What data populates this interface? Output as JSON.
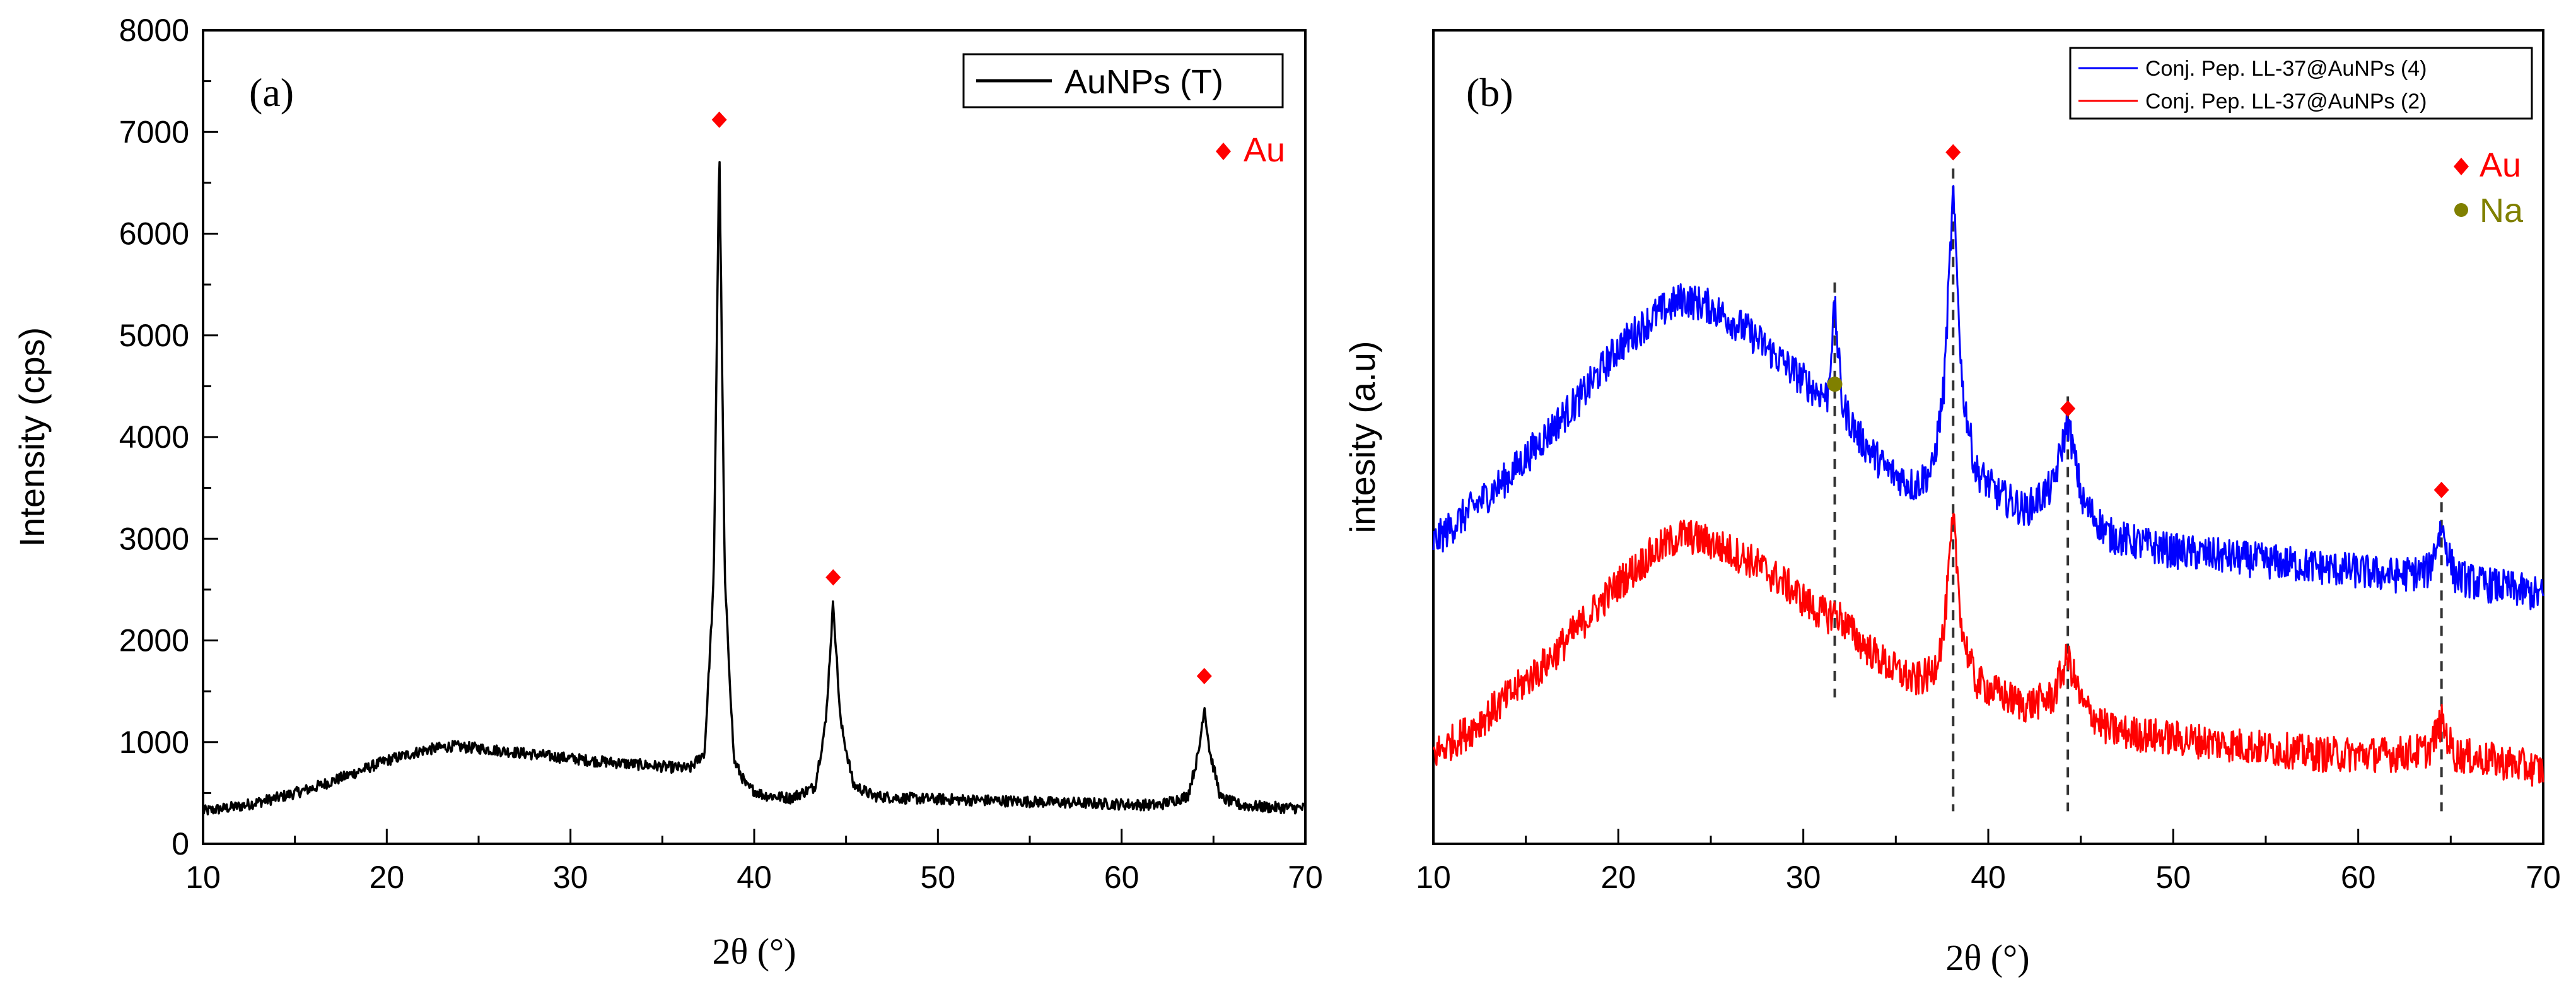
{
  "chart_data": [
    {
      "type": "line",
      "panel_label": "(a)",
      "xlabel": "2θ (°)",
      "ylabel": "Intensity (cps)",
      "xlim": [
        10,
        70
      ],
      "ylim": [
        0,
        8000
      ],
      "x_ticks": [
        10,
        20,
        30,
        40,
        50,
        60,
        70
      ],
      "y_ticks": [
        0,
        1000,
        2000,
        3000,
        4000,
        5000,
        6000,
        7000,
        8000
      ],
      "legend": "top-right",
      "series": [
        {
          "name": "AuNPs (T)",
          "color": "#000000",
          "x": [
            10,
            12,
            14,
            16,
            18,
            20,
            22,
            23.5,
            25,
            27,
            29,
            31,
            33,
            35,
            36.5,
            37.3,
            37.8,
            38.1,
            38.4,
            38.9,
            39.6,
            40.5,
            42,
            43.3,
            43.9,
            44.3,
            44.7,
            45.4,
            46.5,
            48,
            50,
            52,
            54,
            56,
            58,
            60,
            62,
            63.6,
            64.2,
            64.5,
            64.8,
            65.4,
            66.5,
            68,
            70
          ],
          "values": [
            320,
            370,
            450,
            550,
            680,
            820,
            920,
            960,
            940,
            900,
            860,
            820,
            790,
            760,
            740,
            900,
            2600,
            6870,
            2600,
            820,
            560,
            480,
            450,
            560,
            1200,
            2380,
            1200,
            580,
            470,
            450,
            440,
            430,
            420,
            410,
            400,
            390,
            380,
            470,
            900,
            1360,
            900,
            450,
            380,
            360,
            350
          ]
        }
      ],
      "markers": [
        {
          "label": "Au",
          "color": "#ff0000",
          "shape": "diamond",
          "x": [
            38.1,
            44.3,
            64.5
          ],
          "y": [
            7120,
            2620,
            1650
          ]
        }
      ],
      "marker_legend": [
        {
          "label": "Au",
          "color": "#ff0000"
        }
      ]
    },
    {
      "type": "line",
      "panel_label": "(b)",
      "xlabel": "2θ (°)",
      "ylabel": "intesity (a.u)",
      "xlim": [
        10,
        70
      ],
      "ylim": [
        0,
        100
      ],
      "x_ticks": [
        10,
        20,
        30,
        40,
        50,
        60,
        70
      ],
      "y_ticks": [],
      "legend": "top-right",
      "series": [
        {
          "name": "Conj. Pep. LL-37@AuNPs (4)",
          "color": "#0000ff",
          "x": [
            10,
            12,
            14,
            16,
            18,
            20,
            22,
            23.5,
            25,
            27,
            29,
            30.5,
            31.3,
            31.7,
            32.1,
            33,
            34.5,
            36,
            37,
            37.6,
            38.1,
            38.6,
            39.3,
            40.5,
            42,
            43.5,
            44.3,
            45.1,
            46.5,
            48,
            50,
            52,
            54,
            56,
            58,
            60,
            62,
            63.8,
            64.5,
            65.2,
            66.5,
            68,
            70
          ],
          "values": [
            37,
            41,
            45,
            50,
            55,
            61,
            65,
            67,
            66,
            63,
            59,
            56,
            55,
            66,
            54,
            50,
            46,
            44,
            46,
            56,
            80,
            56,
            46,
            43,
            41,
            44,
            52,
            42,
            38,
            37,
            36,
            35.5,
            35,
            34.5,
            34,
            33.5,
            33,
            33.5,
            39,
            33,
            32,
            31.5,
            30.5
          ]
        },
        {
          "name": "Conj. Pep. LL-37@AuNPs (2)",
          "color": "#ff0000",
          "x": [
            10,
            12,
            14,
            16,
            18,
            20,
            22,
            23.5,
            25,
            27,
            29,
            30.5,
            31.3,
            31.7,
            32.1,
            33,
            34.5,
            36,
            37,
            37.6,
            38.1,
            38.6,
            39.3,
            40.5,
            42,
            43.5,
            44.3,
            45.1,
            46.5,
            48,
            50,
            52,
            54,
            56,
            58,
            60,
            62,
            63.8,
            64.5,
            65.2,
            66.5,
            68,
            70
          ],
          "values": [
            11,
            14,
            18,
            22,
            27,
            32,
            36,
            38,
            37,
            35,
            32,
            29,
            28,
            28.5,
            27.5,
            25,
            22,
            20,
            21,
            26,
            40,
            26,
            20,
            18.5,
            17,
            18,
            23,
            17,
            14,
            13.5,
            13,
            12.5,
            12,
            11.5,
            11,
            11,
            11,
            11.5,
            15,
            11,
            10.5,
            10,
            9
          ]
        }
      ],
      "markers": [
        {
          "label": "Au",
          "color": "#ff0000",
          "shape": "diamond",
          "x": [
            38.1,
            44.3,
            64.5
          ],
          "y": [
            85,
            53.5,
            43.5
          ]
        },
        {
          "label": "Na",
          "color": "#808000",
          "shape": "circle",
          "x": [
            31.7
          ],
          "y": [
            56.5
          ]
        }
      ],
      "guide_lines_x": [
        31.7,
        38.1,
        44.3,
        64.5
      ],
      "marker_legend": [
        {
          "label": "Au",
          "color": "#ff0000"
        },
        {
          "label": "Na",
          "color": "#808000"
        }
      ]
    }
  ]
}
